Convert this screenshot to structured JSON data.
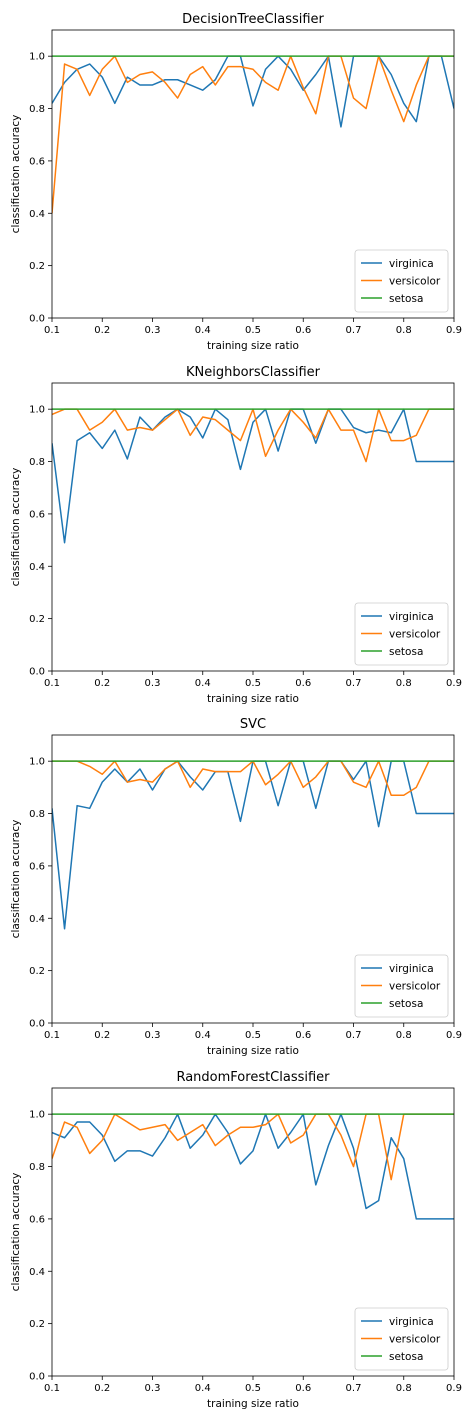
{
  "colors": {
    "virginica": "#1f77b4",
    "versicolor": "#ff7f0e",
    "setosa": "#2ca02c"
  },
  "chart_data": [
    {
      "type": "line",
      "title": "DecisionTreeClassifier",
      "xlabel": "training size ratio",
      "ylabel": "classification accuracy",
      "xlim": [
        0.1,
        0.9
      ],
      "ylim": [
        0.0,
        1.1
      ],
      "xticks": [
        "0.1",
        "0.2",
        "0.3",
        "0.4",
        "0.5",
        "0.6",
        "0.7",
        "0.8",
        "0.9"
      ],
      "yticks": [
        "0.0",
        "0.2",
        "0.4",
        "0.6",
        "0.8",
        "1.0"
      ],
      "legend_position": "lower right",
      "x": [
        0.1,
        0.125,
        0.15,
        0.175,
        0.2,
        0.225,
        0.25,
        0.275,
        0.3,
        0.325,
        0.35,
        0.375,
        0.4,
        0.425,
        0.45,
        0.475,
        0.5,
        0.525,
        0.55,
        0.575,
        0.6,
        0.625,
        0.65,
        0.675,
        0.7,
        0.725,
        0.75,
        0.775,
        0.8,
        0.825,
        0.85,
        0.875,
        0.9
      ],
      "series": [
        {
          "name": "virginica",
          "values": [
            0.82,
            0.9,
            0.95,
            0.97,
            0.92,
            0.82,
            0.92,
            0.89,
            0.89,
            0.91,
            0.91,
            0.89,
            0.87,
            0.91,
            1.0,
            1.0,
            0.81,
            0.95,
            1.0,
            0.95,
            0.87,
            0.93,
            1.0,
            0.73,
            1.0,
            1.0,
            1.0,
            0.93,
            0.82,
            0.75,
            1.0,
            1.0,
            0.8
          ]
        },
        {
          "name": "versicolor",
          "values": [
            0.4,
            0.97,
            0.95,
            0.85,
            0.95,
            1.0,
            0.9,
            0.93,
            0.94,
            0.9,
            0.84,
            0.93,
            0.96,
            0.89,
            0.96,
            0.96,
            0.95,
            0.9,
            0.87,
            1.0,
            0.88,
            0.78,
            1.0,
            1.0,
            0.84,
            0.8,
            1.0,
            0.87,
            0.75,
            0.89,
            1.0,
            1.0,
            1.0
          ]
        },
        {
          "name": "setosa",
          "values": [
            1.0,
            1.0,
            1.0,
            1.0,
            1.0,
            1.0,
            1.0,
            1.0,
            1.0,
            1.0,
            1.0,
            1.0,
            1.0,
            1.0,
            1.0,
            1.0,
            1.0,
            1.0,
            1.0,
            1.0,
            1.0,
            1.0,
            1.0,
            1.0,
            1.0,
            1.0,
            1.0,
            1.0,
            1.0,
            1.0,
            1.0,
            1.0,
            1.0
          ]
        }
      ]
    },
    {
      "type": "line",
      "title": "KNeighborsClassifier",
      "xlabel": "training size ratio",
      "ylabel": "classification accuracy",
      "xlim": [
        0.1,
        0.9
      ],
      "ylim": [
        0.0,
        1.1
      ],
      "xticks": [
        "0.1",
        "0.2",
        "0.3",
        "0.4",
        "0.5",
        "0.6",
        "0.7",
        "0.8",
        "0.9"
      ],
      "yticks": [
        "0.0",
        "0.2",
        "0.4",
        "0.6",
        "0.8",
        "1.0"
      ],
      "legend_position": "lower right",
      "x": [
        0.1,
        0.125,
        0.15,
        0.175,
        0.2,
        0.225,
        0.25,
        0.275,
        0.3,
        0.325,
        0.35,
        0.375,
        0.4,
        0.425,
        0.45,
        0.475,
        0.5,
        0.525,
        0.55,
        0.575,
        0.6,
        0.625,
        0.65,
        0.675,
        0.7,
        0.725,
        0.75,
        0.775,
        0.8,
        0.825,
        0.85,
        0.875,
        0.9
      ],
      "series": [
        {
          "name": "virginica",
          "values": [
            0.87,
            0.49,
            0.88,
            0.91,
            0.85,
            0.92,
            0.81,
            0.97,
            0.92,
            0.97,
            1.0,
            0.97,
            0.89,
            1.0,
            0.96,
            0.77,
            0.95,
            1.0,
            0.84,
            1.0,
            1.0,
            0.87,
            1.0,
            1.0,
            0.93,
            0.91,
            0.92,
            0.91,
            1.0,
            0.8,
            0.8,
            0.8,
            0.8
          ]
        },
        {
          "name": "versicolor",
          "values": [
            0.98,
            1.0,
            1.0,
            0.92,
            0.95,
            1.0,
            0.92,
            0.93,
            0.92,
            0.96,
            1.0,
            0.9,
            0.97,
            0.96,
            0.92,
            0.88,
            1.0,
            0.82,
            0.92,
            1.0,
            0.95,
            0.89,
            1.0,
            0.92,
            0.92,
            0.8,
            1.0,
            0.88,
            0.88,
            0.9,
            1.0,
            1.0,
            1.0
          ]
        },
        {
          "name": "setosa",
          "values": [
            1.0,
            1.0,
            1.0,
            1.0,
            1.0,
            1.0,
            1.0,
            1.0,
            1.0,
            1.0,
            1.0,
            1.0,
            1.0,
            1.0,
            1.0,
            1.0,
            1.0,
            1.0,
            1.0,
            1.0,
            1.0,
            1.0,
            1.0,
            1.0,
            1.0,
            1.0,
            1.0,
            1.0,
            1.0,
            1.0,
            1.0,
            1.0,
            1.0
          ]
        }
      ]
    },
    {
      "type": "line",
      "title": "SVC",
      "xlabel": "training size ratio",
      "ylabel": "classification accuracy",
      "xlim": [
        0.1,
        0.9
      ],
      "ylim": [
        0.0,
        1.1
      ],
      "xticks": [
        "0.1",
        "0.2",
        "0.3",
        "0.4",
        "0.5",
        "0.6",
        "0.7",
        "0.8",
        "0.9"
      ],
      "yticks": [
        "0.0",
        "0.2",
        "0.4",
        "0.6",
        "0.8",
        "1.0"
      ],
      "legend_position": "lower right",
      "x": [
        0.1,
        0.125,
        0.15,
        0.175,
        0.2,
        0.225,
        0.25,
        0.275,
        0.3,
        0.325,
        0.35,
        0.375,
        0.4,
        0.425,
        0.45,
        0.475,
        0.5,
        0.525,
        0.55,
        0.575,
        0.6,
        0.625,
        0.65,
        0.675,
        0.7,
        0.725,
        0.75,
        0.775,
        0.8,
        0.825,
        0.85,
        0.875,
        0.9
      ],
      "series": [
        {
          "name": "virginica",
          "values": [
            0.82,
            0.36,
            0.83,
            0.82,
            0.92,
            0.97,
            0.92,
            0.97,
            0.89,
            0.97,
            1.0,
            0.94,
            0.89,
            0.96,
            0.96,
            0.77,
            1.0,
            1.0,
            0.83,
            1.0,
            1.0,
            0.82,
            1.0,
            1.0,
            0.93,
            1.0,
            0.75,
            1.0,
            1.0,
            0.8,
            0.8,
            0.8,
            0.8
          ]
        },
        {
          "name": "versicolor",
          "values": [
            1.0,
            1.0,
            1.0,
            0.98,
            0.95,
            1.0,
            0.92,
            0.93,
            0.92,
            0.97,
            1.0,
            0.9,
            0.97,
            0.96,
            0.96,
            0.96,
            1.0,
            0.91,
            0.95,
            1.0,
            0.9,
            0.94,
            1.0,
            1.0,
            0.92,
            0.9,
            1.0,
            0.87,
            0.87,
            0.9,
            1.0,
            1.0,
            1.0
          ]
        },
        {
          "name": "setosa",
          "values": [
            1.0,
            1.0,
            1.0,
            1.0,
            1.0,
            1.0,
            1.0,
            1.0,
            1.0,
            1.0,
            1.0,
            1.0,
            1.0,
            1.0,
            1.0,
            1.0,
            1.0,
            1.0,
            1.0,
            1.0,
            1.0,
            1.0,
            1.0,
            1.0,
            1.0,
            1.0,
            1.0,
            1.0,
            1.0,
            1.0,
            1.0,
            1.0,
            1.0
          ]
        }
      ]
    },
    {
      "type": "line",
      "title": "RandomForestClassifier",
      "xlabel": "training size ratio",
      "ylabel": "classification accuracy",
      "xlim": [
        0.1,
        0.9
      ],
      "ylim": [
        0.0,
        1.1
      ],
      "xticks": [
        "0.1",
        "0.2",
        "0.3",
        "0.4",
        "0.5",
        "0.6",
        "0.7",
        "0.8",
        "0.9"
      ],
      "yticks": [
        "0.0",
        "0.2",
        "0.4",
        "0.6",
        "0.8",
        "1.0"
      ],
      "legend_position": "lower right",
      "x": [
        0.1,
        0.125,
        0.15,
        0.175,
        0.2,
        0.225,
        0.25,
        0.275,
        0.3,
        0.325,
        0.35,
        0.375,
        0.4,
        0.425,
        0.45,
        0.475,
        0.5,
        0.525,
        0.55,
        0.575,
        0.6,
        0.625,
        0.65,
        0.675,
        0.7,
        0.725,
        0.75,
        0.775,
        0.8,
        0.825,
        0.85,
        0.875,
        0.9
      ],
      "series": [
        {
          "name": "virginica",
          "values": [
            0.93,
            0.91,
            0.97,
            0.97,
            0.92,
            0.82,
            0.86,
            0.86,
            0.84,
            0.91,
            1.0,
            0.87,
            0.92,
            1.0,
            0.93,
            0.81,
            0.86,
            1.0,
            0.87,
            0.93,
            1.0,
            0.73,
            0.88,
            1.0,
            0.87,
            0.64,
            0.67,
            0.91,
            0.83,
            0.6,
            0.6,
            0.6,
            0.6
          ]
        },
        {
          "name": "versicolor",
          "values": [
            0.83,
            0.97,
            0.95,
            0.85,
            0.9,
            1.0,
            0.97,
            0.94,
            0.95,
            0.96,
            0.9,
            0.93,
            0.96,
            0.88,
            0.92,
            0.95,
            0.95,
            0.96,
            1.0,
            0.89,
            0.92,
            1.0,
            1.0,
            0.92,
            0.8,
            1.0,
            1.0,
            0.75,
            1.0,
            1.0,
            1.0,
            1.0,
            1.0
          ]
        },
        {
          "name": "setosa",
          "values": [
            1.0,
            1.0,
            1.0,
            1.0,
            1.0,
            1.0,
            1.0,
            1.0,
            1.0,
            1.0,
            1.0,
            1.0,
            1.0,
            1.0,
            1.0,
            1.0,
            1.0,
            1.0,
            1.0,
            1.0,
            1.0,
            1.0,
            1.0,
            1.0,
            1.0,
            1.0,
            1.0,
            1.0,
            1.0,
            1.0,
            1.0,
            1.0,
            1.0
          ]
        }
      ]
    }
  ]
}
